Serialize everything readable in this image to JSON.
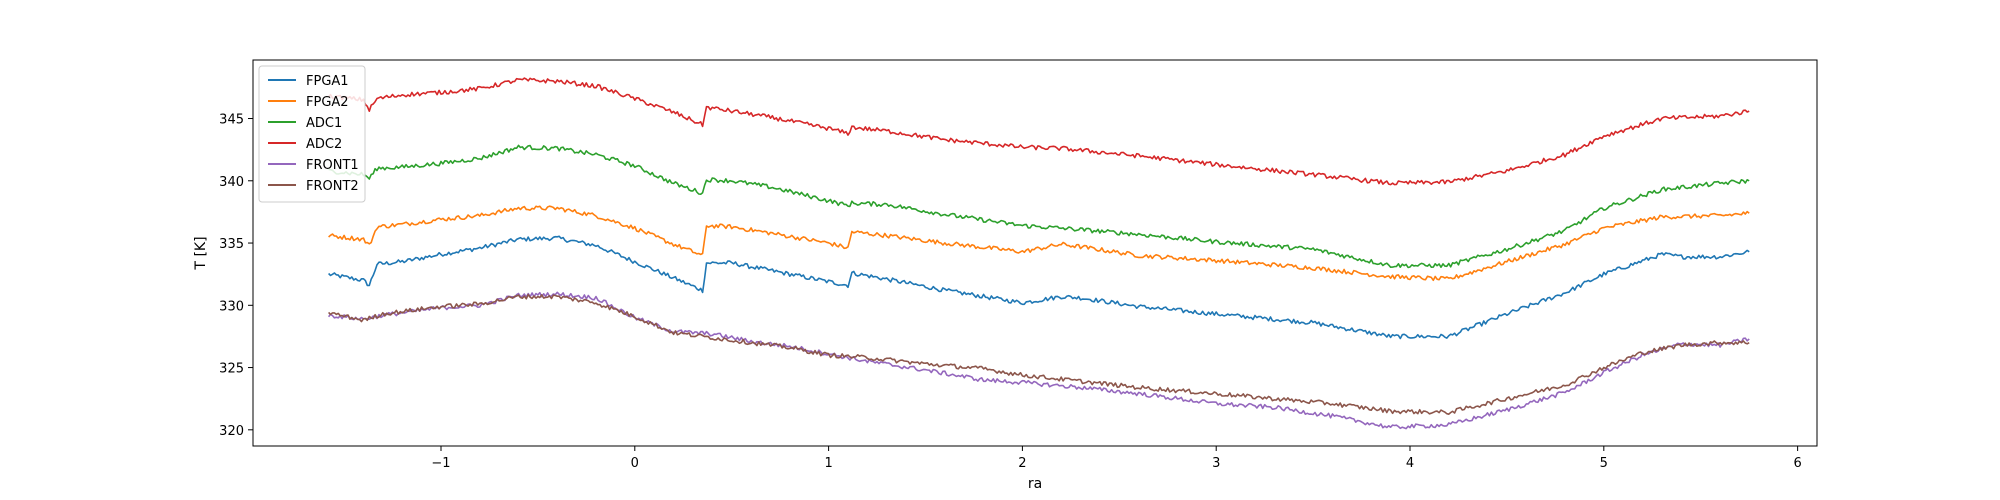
{
  "chart_data": {
    "type": "line",
    "title": "",
    "xlabel": "ra",
    "ylabel": "T [K]",
    "xlim": [
      -1.97,
      6.1
    ],
    "ylim": [
      318.7,
      349.7
    ],
    "xticks": [
      -1,
      0,
      1,
      2,
      3,
      4,
      5,
      6
    ],
    "xtick_labels": [
      "−1",
      "0",
      "1",
      "2",
      "3",
      "4",
      "5",
      "6"
    ],
    "yticks": [
      320,
      325,
      330,
      335,
      340,
      345
    ],
    "ytick_labels": [
      "320",
      "325",
      "330",
      "335",
      "340",
      "345"
    ],
    "grid": false,
    "legend_position": "upper-left",
    "series": [
      {
        "name": "FPGA1",
        "color": "#1f77b4",
        "x": [
          -1.58,
          -1.4,
          -1.37,
          -1.33,
          -1.2,
          -1.0,
          -0.8,
          -0.6,
          -0.4,
          -0.2,
          0.0,
          0.2,
          0.35,
          0.37,
          0.5,
          0.7,
          1.0,
          1.1,
          1.12,
          1.3,
          1.6,
          2.0,
          2.2,
          2.3,
          2.6,
          3.0,
          3.5,
          3.9,
          4.2,
          4.5,
          4.8,
          5.0,
          5.3,
          5.4,
          5.6,
          5.75
        ],
        "y": [
          332.5,
          332.0,
          331.6,
          333.3,
          333.5,
          334.1,
          334.6,
          335.3,
          335.4,
          334.8,
          333.5,
          332.2,
          331.2,
          333.4,
          333.4,
          332.8,
          331.9,
          331.6,
          332.6,
          332.1,
          331.2,
          330.2,
          330.7,
          330.6,
          329.9,
          329.3,
          328.6,
          327.5,
          327.5,
          329.3,
          331.0,
          332.5,
          334.1,
          333.9,
          333.9,
          334.3
        ]
      },
      {
        "name": "FPGA2",
        "color": "#ff7f0e",
        "x": [
          -1.58,
          -1.4,
          -1.37,
          -1.33,
          -1.2,
          -1.0,
          -0.8,
          -0.6,
          -0.4,
          -0.2,
          0.0,
          0.2,
          0.35,
          0.37,
          0.5,
          0.7,
          1.0,
          1.1,
          1.12,
          1.3,
          1.6,
          2.0,
          2.2,
          2.3,
          2.6,
          3.0,
          3.5,
          3.9,
          4.2,
          4.5,
          4.8,
          5.0,
          5.3,
          5.6,
          5.75
        ],
        "y": [
          335.6,
          335.3,
          334.8,
          336.3,
          336.5,
          336.9,
          337.2,
          337.8,
          337.8,
          337.2,
          336.2,
          334.9,
          334.0,
          336.4,
          336.3,
          335.8,
          335.0,
          334.6,
          335.9,
          335.6,
          335.0,
          334.3,
          334.9,
          334.7,
          334.0,
          333.6,
          333.0,
          332.3,
          332.1,
          333.5,
          334.9,
          336.2,
          337.1,
          337.2,
          337.4
        ]
      },
      {
        "name": "ADC1",
        "color": "#2ca02c",
        "x": [
          -1.58,
          -1.4,
          -1.37,
          -1.33,
          -1.2,
          -1.0,
          -0.8,
          -0.6,
          -0.4,
          -0.2,
          0.0,
          0.2,
          0.35,
          0.37,
          0.5,
          0.7,
          1.0,
          1.1,
          1.12,
          1.3,
          1.6,
          2.0,
          2.2,
          2.6,
          3.0,
          3.5,
          3.9,
          4.2,
          4.5,
          4.8,
          5.0,
          5.3,
          5.6,
          5.75
        ],
        "y": [
          340.8,
          340.5,
          340.2,
          341.0,
          341.1,
          341.4,
          341.8,
          342.7,
          342.6,
          342.1,
          341.2,
          339.8,
          339.0,
          340.1,
          340.0,
          339.5,
          338.4,
          338.0,
          338.2,
          338.1,
          337.3,
          336.4,
          336.2,
          335.7,
          335.1,
          334.5,
          333.2,
          333.2,
          334.5,
          336.0,
          337.8,
          339.3,
          339.8,
          340.0
        ]
      },
      {
        "name": "ADC2",
        "color": "#d62728",
        "x": [
          -1.58,
          -1.4,
          -1.37,
          -1.33,
          -1.2,
          -1.0,
          -0.8,
          -0.6,
          -0.4,
          -0.2,
          0.0,
          0.2,
          0.35,
          0.37,
          0.5,
          0.7,
          1.0,
          1.1,
          1.12,
          1.3,
          1.6,
          2.0,
          2.2,
          2.6,
          3.0,
          3.5,
          3.9,
          4.2,
          4.5,
          4.8,
          5.0,
          5.3,
          5.6,
          5.75
        ],
        "y": [
          346.8,
          346.5,
          345.7,
          346.6,
          346.9,
          347.1,
          347.4,
          348.1,
          348.0,
          347.6,
          346.6,
          345.5,
          344.5,
          345.9,
          345.6,
          345.1,
          344.2,
          343.8,
          344.3,
          344.0,
          343.3,
          342.7,
          342.6,
          342.0,
          341.3,
          340.5,
          339.8,
          339.9,
          340.8,
          342.1,
          343.6,
          345.0,
          345.2,
          345.6
        ]
      },
      {
        "name": "FRONT1",
        "color": "#9467bd",
        "x": [
          -1.58,
          -1.4,
          -1.3,
          -1.2,
          -1.0,
          -0.8,
          -0.6,
          -0.4,
          -0.2,
          0.0,
          0.2,
          0.4,
          0.6,
          0.8,
          1.0,
          1.2,
          1.5,
          1.8,
          2.0,
          2.3,
          2.6,
          3.0,
          3.3,
          3.6,
          3.9,
          4.2,
          4.5,
          4.8,
          5.0,
          5.2,
          5.4,
          5.6,
          5.75
        ],
        "y": [
          329.2,
          328.9,
          329.2,
          329.4,
          329.8,
          330.0,
          330.8,
          330.9,
          330.6,
          329.0,
          327.9,
          327.7,
          327.1,
          326.7,
          326.1,
          325.5,
          324.8,
          324.0,
          323.8,
          323.4,
          322.9,
          322.1,
          321.8,
          321.1,
          320.2,
          320.4,
          321.6,
          323.0,
          324.6,
          326.0,
          326.9,
          326.8,
          327.3
        ]
      },
      {
        "name": "FRONT2",
        "color": "#8c564b",
        "x": [
          -1.58,
          -1.4,
          -1.3,
          -1.2,
          -1.0,
          -0.8,
          -0.6,
          -0.4,
          -0.2,
          0.0,
          0.2,
          0.4,
          0.6,
          0.8,
          1.0,
          1.2,
          1.5,
          1.8,
          2.0,
          2.3,
          2.6,
          3.0,
          3.3,
          3.6,
          3.9,
          4.2,
          4.5,
          4.8,
          5.0,
          5.2,
          5.4,
          5.6,
          5.75
        ],
        "y": [
          329.4,
          328.8,
          329.3,
          329.5,
          329.9,
          330.1,
          330.7,
          330.7,
          330.2,
          329.1,
          327.8,
          327.4,
          327.0,
          326.6,
          326.0,
          325.8,
          325.3,
          324.9,
          324.4,
          323.9,
          323.4,
          322.9,
          322.5,
          322.1,
          321.5,
          321.4,
          322.5,
          323.6,
          325.0,
          326.2,
          326.8,
          327.0,
          327.0
        ]
      }
    ]
  }
}
